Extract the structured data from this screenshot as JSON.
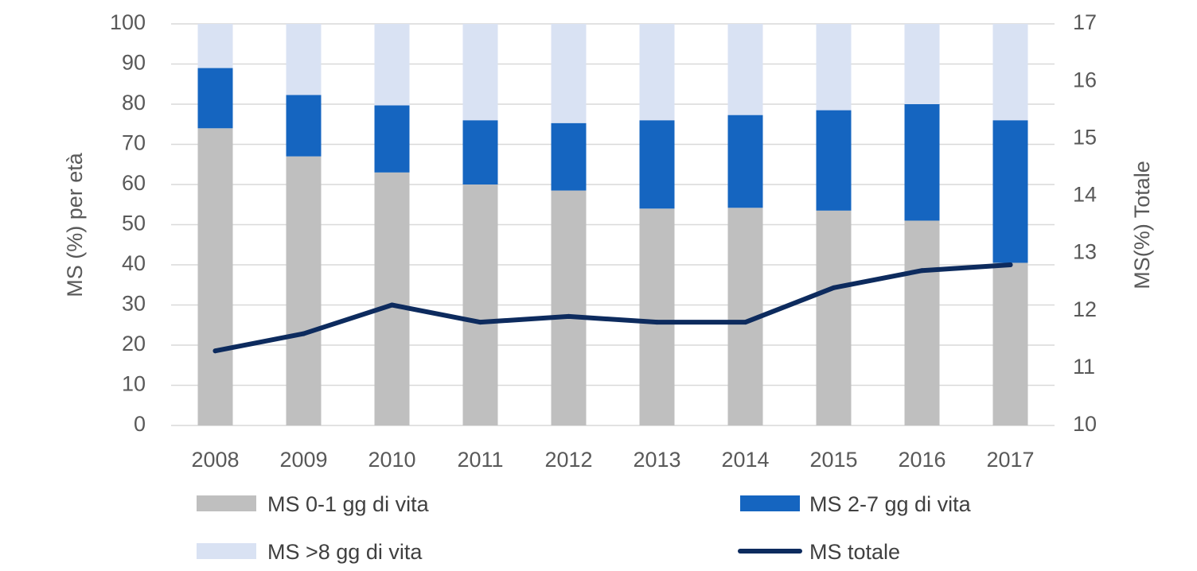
{
  "chart_data": {
    "type": "bar",
    "stacked": true,
    "categories": [
      "2008",
      "2009",
      "2010",
      "2011",
      "2012",
      "2013",
      "2014",
      "2015",
      "2016",
      "2017"
    ],
    "series": [
      {
        "name": "MS 0-1 gg di vita",
        "color": "#bfbfbf",
        "axis": "left",
        "values": [
          74,
          67,
          63,
          60,
          58.5,
          54,
          54.2,
          53.5,
          51,
          40.5
        ]
      },
      {
        "name": "MS 2-7 gg di vita",
        "color": "#1565c0",
        "axis": "left",
        "values": [
          15,
          15.3,
          16.7,
          16,
          16.8,
          22,
          23.1,
          25,
          29,
          35.5
        ]
      },
      {
        "name": "MS >8 gg di vita",
        "color": "#d9e2f3",
        "axis": "left",
        "values": [
          11,
          17.7,
          20.3,
          24,
          24.7,
          24,
          22.7,
          21.5,
          20,
          24
        ]
      },
      {
        "name": "MS totale",
        "type": "line",
        "color": "#0d2b5e",
        "axis": "right",
        "values": [
          11.3,
          11.6,
          12.1,
          11.8,
          11.9,
          11.8,
          11.8,
          12.4,
          12.7,
          12.8
        ]
      }
    ],
    "y_left": {
      "label": "MS (%) per età",
      "min": 0,
      "max": 100,
      "step": 10,
      "ticks": [
        "0",
        "10",
        "20",
        "30",
        "40",
        "50",
        "60",
        "70",
        "80",
        "90",
        "100"
      ]
    },
    "y_right": {
      "label": "MS(%) Totale",
      "min": 10,
      "max": 17,
      "step": 1,
      "ticks": [
        "10",
        "11",
        "12",
        "13",
        "14",
        "15",
        "16",
        "17"
      ]
    },
    "grid": true,
    "legend_position": "bottom"
  }
}
